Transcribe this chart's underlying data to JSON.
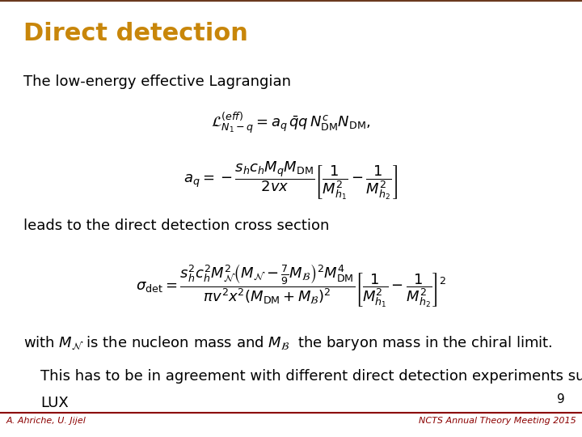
{
  "title": "Direct detection",
  "title_color": "#C8860A",
  "title_fontsize": 22,
  "bg_color": "#FFFFFF",
  "top_bar_color": "#6B3A1F",
  "bottom_bar_color": "#8B0000",
  "slide_number": "9",
  "author_left": "A. Ahriche, U. Jijel",
  "author_right": "NCTS Annual Theory Meeting 2015",
  "footer_color": "#8B0000",
  "text1": "The low-energy effective Lagrangian",
  "text2": "leads to the direct detection cross section",
  "text4_line1": "This has to be in agreement with different direct detection experiments such as",
  "text4_line2": "LUX",
  "eq_fontsize": 13,
  "text_fontsize": 13
}
